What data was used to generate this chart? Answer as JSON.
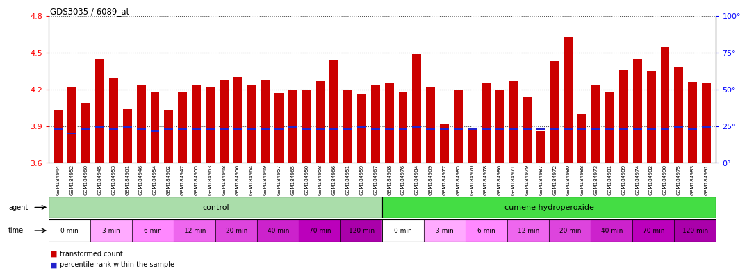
{
  "title": "GDS3035 / 6089_at",
  "bar_values": [
    4.03,
    4.22,
    4.09,
    4.45,
    4.29,
    4.04,
    4.23,
    4.18,
    4.03,
    4.18,
    4.24,
    4.22,
    4.28,
    4.3,
    4.24,
    4.28,
    4.17,
    4.2,
    4.19,
    4.27,
    4.44,
    4.2,
    4.16,
    4.23,
    4.25,
    4.18,
    4.49,
    4.22,
    3.92,
    4.19,
    3.87,
    4.25,
    4.2,
    4.27,
    4.14,
    3.86,
    4.43,
    4.63,
    4.0,
    4.23,
    4.18,
    4.36,
    4.45,
    4.35,
    4.55,
    4.38,
    4.26,
    4.25
  ],
  "percentile_values": [
    3.878,
    3.84,
    3.878,
    3.895,
    3.878,
    3.895,
    3.878,
    3.86,
    3.878,
    3.878,
    3.878,
    3.878,
    3.878,
    3.878,
    3.878,
    3.878,
    3.878,
    3.895,
    3.878,
    3.878,
    3.878,
    3.878,
    3.895,
    3.878,
    3.878,
    3.878,
    3.895,
    3.878,
    3.878,
    3.878,
    3.878,
    3.878,
    3.878,
    3.878,
    3.878,
    3.878,
    3.878,
    3.878,
    3.878,
    3.878,
    3.878,
    3.878,
    3.878,
    3.878,
    3.878,
    3.895,
    3.878,
    3.895
  ],
  "x_labels": [
    "GSM184944",
    "GSM184952",
    "GSM184960",
    "GSM184945",
    "GSM184953",
    "GSM184961",
    "GSM184946",
    "GSM184954",
    "GSM184962",
    "GSM184947",
    "GSM184955",
    "GSM184963",
    "GSM184948",
    "GSM184956",
    "GSM184964",
    "GSM184949",
    "GSM184957",
    "GSM184965",
    "GSM184950",
    "GSM184958",
    "GSM184966",
    "GSM184951",
    "GSM184959",
    "GSM184967",
    "GSM184968",
    "GSM184976",
    "GSM184984",
    "GSM184969",
    "GSM184977",
    "GSM184985",
    "GSM184970",
    "GSM184978",
    "GSM184986",
    "GSM184971",
    "GSM184979",
    "GSM184987",
    "GSM184972",
    "GSM184980",
    "GSM184988",
    "GSM184973",
    "GSM184981",
    "GSM184989",
    "GSM184974",
    "GSM184982",
    "GSM184990",
    "GSM184975",
    "GSM184983",
    "GSM184991"
  ],
  "ylim": [
    3.6,
    4.8
  ],
  "yticks_left": [
    3.6,
    3.9,
    4.2,
    4.5,
    4.8
  ],
  "yticks_right": [
    0,
    25,
    50,
    75,
    100
  ],
  "bar_color": "#cc0000",
  "percentile_color": "#2222cc",
  "control_color": "#aaddaa",
  "cumene_color": "#44dd44",
  "time_colors": [
    "#ffffff",
    "#ffaaff",
    "#ff88ff",
    "#ee66ee",
    "#dd44dd",
    "#cc22cc",
    "#bb00bb",
    "#aa00aa"
  ],
  "time_labels": [
    "0 min",
    "3 min",
    "6 min",
    "12 min",
    "20 min",
    "40 min",
    "70 min",
    "120 min"
  ],
  "n_control": 24,
  "n_cumene": 24,
  "xtick_bg_color": "#cccccc"
}
